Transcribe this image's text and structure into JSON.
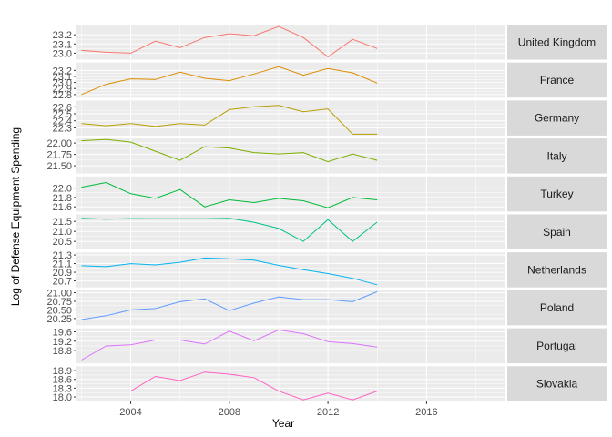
{
  "chart_data": {
    "type": "line",
    "facet": "rows",
    "xlabel": "Year",
    "ylabel": "Log of Defense Equipment Spending",
    "xlim": [
      2001.8,
      2019.2
    ],
    "x_ticks": [
      2004,
      2008,
      2012,
      2016
    ],
    "grid": true,
    "years": [
      2002,
      2003,
      2004,
      2005,
      2006,
      2007,
      2008,
      2009,
      2010,
      2011,
      2012,
      2013,
      2014
    ],
    "panels": [
      {
        "name": "United Kingdom",
        "color": "#F8766D",
        "ylim": [
          22.93,
          23.31
        ],
        "ticks": [
          23.0,
          23.1,
          23.2
        ],
        "values": [
          23.03,
          23.01,
          23.0,
          23.13,
          23.06,
          23.17,
          23.21,
          23.19,
          23.29,
          23.17,
          22.96,
          23.15,
          23.05
        ]
      },
      {
        "name": "France",
        "color": "#DE8C00",
        "ylim": [
          22.75,
          23.33
        ],
        "ticks": [
          22.8,
          22.9,
          23.0,
          23.1,
          23.2
        ],
        "values": [
          22.8,
          22.97,
          23.06,
          23.05,
          23.17,
          23.07,
          23.03,
          23.14,
          23.26,
          23.12,
          23.23,
          23.16,
          22.99
        ]
      },
      {
        "name": "Germany",
        "color": "#B79F00",
        "ylim": [
          22.19,
          22.69
        ],
        "ticks": [
          22.3,
          22.4,
          22.5,
          22.6
        ],
        "values": [
          22.36,
          22.33,
          22.36,
          22.32,
          22.36,
          22.34,
          22.56,
          22.6,
          22.62,
          22.53,
          22.57,
          22.21,
          22.21
        ]
      },
      {
        "name": "Italy",
        "color": "#7CAE00",
        "ylim": [
          21.33,
          22.1
        ],
        "ticks": [
          21.5,
          21.75,
          22.0
        ],
        "values": [
          22.05,
          22.08,
          22.02,
          21.82,
          21.62,
          21.92,
          21.89,
          21.79,
          21.76,
          21.79,
          21.59,
          21.76,
          21.62
        ]
      },
      {
        "name": "Turkey",
        "color": "#00BA38",
        "ylim": [
          21.5,
          22.25
        ],
        "ticks": [
          21.6,
          21.8,
          22.0
        ],
        "values": [
          22.02,
          22.12,
          21.88,
          21.78,
          21.97,
          21.6,
          21.75,
          21.69,
          21.78,
          21.73,
          21.58,
          21.8,
          21.75
        ]
      },
      {
        "name": "Spain",
        "color": "#00C08B",
        "ylim": [
          20.1,
          21.85
        ],
        "ticks": [
          20.5,
          21.0,
          21.5
        ],
        "values": [
          21.66,
          21.61,
          21.64,
          21.63,
          21.63,
          21.63,
          21.66,
          21.46,
          21.15,
          20.5,
          21.59,
          20.5,
          21.47
        ]
      },
      {
        "name": "Netherlands",
        "color": "#00B4EF",
        "ylim": [
          20.55,
          21.36
        ],
        "ticks": [
          20.7,
          20.9,
          21.1,
          21.3
        ],
        "values": [
          21.05,
          21.03,
          21.1,
          21.07,
          21.13,
          21.23,
          21.21,
          21.18,
          21.06,
          20.96,
          20.87,
          20.76,
          20.61
        ]
      },
      {
        "name": "Poland",
        "color": "#619CFF",
        "ylim": [
          20.05,
          21.07
        ],
        "ticks": [
          20.25,
          20.5,
          20.75,
          21.0
        ],
        "values": [
          20.22,
          20.33,
          20.5,
          20.54,
          20.74,
          20.82,
          20.48,
          20.7,
          20.88,
          20.8,
          20.8,
          20.74,
          21.03
        ]
      },
      {
        "name": "Portugal",
        "color": "#DB72FB",
        "ylim": [
          18.26,
          19.75
        ],
        "ticks": [
          18.8,
          19.2,
          19.6
        ],
        "values": [
          18.4,
          19.0,
          19.05,
          19.25,
          19.25,
          19.08,
          19.63,
          19.22,
          19.68,
          19.52,
          19.18,
          19.1,
          18.95
        ]
      },
      {
        "name": "Slovakia",
        "color": "#FF61C3",
        "ylim": [
          17.85,
          19.05
        ],
        "ticks": [
          18.0,
          18.3,
          18.6,
          18.9
        ],
        "values": [
          null,
          null,
          18.2,
          18.7,
          18.56,
          18.85,
          18.78,
          18.66,
          18.2,
          17.9,
          18.13,
          17.9,
          18.2
        ]
      }
    ]
  }
}
